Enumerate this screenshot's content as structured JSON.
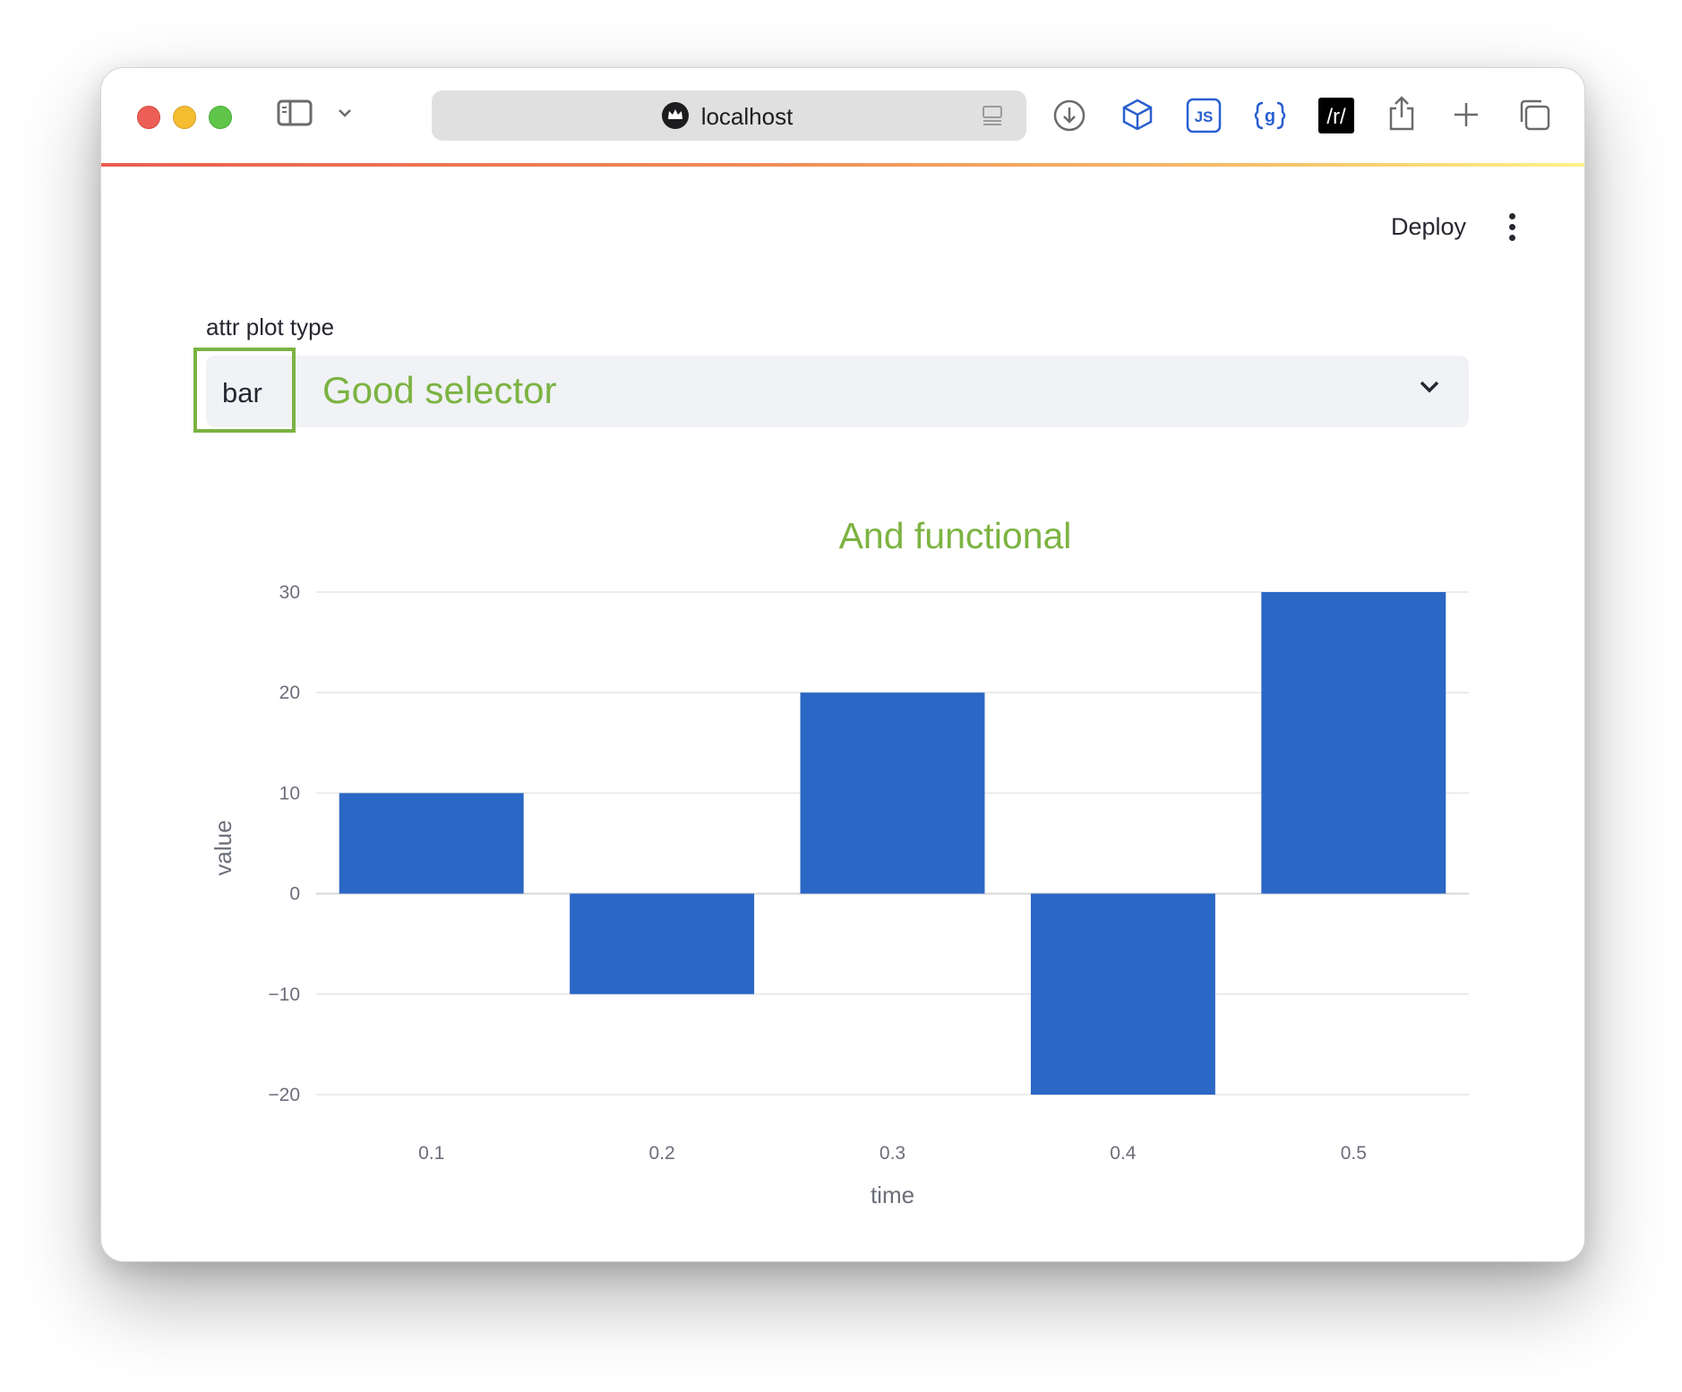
{
  "browser": {
    "address": "localhost",
    "colors": {
      "progress_start": "#ea5e50",
      "progress_end": "#fbf28a"
    }
  },
  "app": {
    "deploy_label": "Deploy",
    "menu_icon": "kebab-menu-icon"
  },
  "selector": {
    "label": "attr plot type",
    "value": "bar",
    "hint": "Good selector",
    "highlight_color": "#7cb342"
  },
  "chart_data": {
    "type": "bar",
    "title": "And functional",
    "xlabel": "time",
    "ylabel": "value",
    "categories": [
      "0.1",
      "0.2",
      "0.3",
      "0.4",
      "0.5"
    ],
    "values": [
      10,
      -10,
      20,
      -20,
      30
    ],
    "ylim": [
      -20,
      30
    ],
    "yticks": [
      30,
      20,
      10,
      0,
      -10,
      -20
    ],
    "ytick_labels": [
      "30",
      "20",
      "10",
      "0",
      "−10",
      "−20"
    ],
    "bar_color": "#2b67c4",
    "title_color": "#7cb342",
    "grid": true
  }
}
